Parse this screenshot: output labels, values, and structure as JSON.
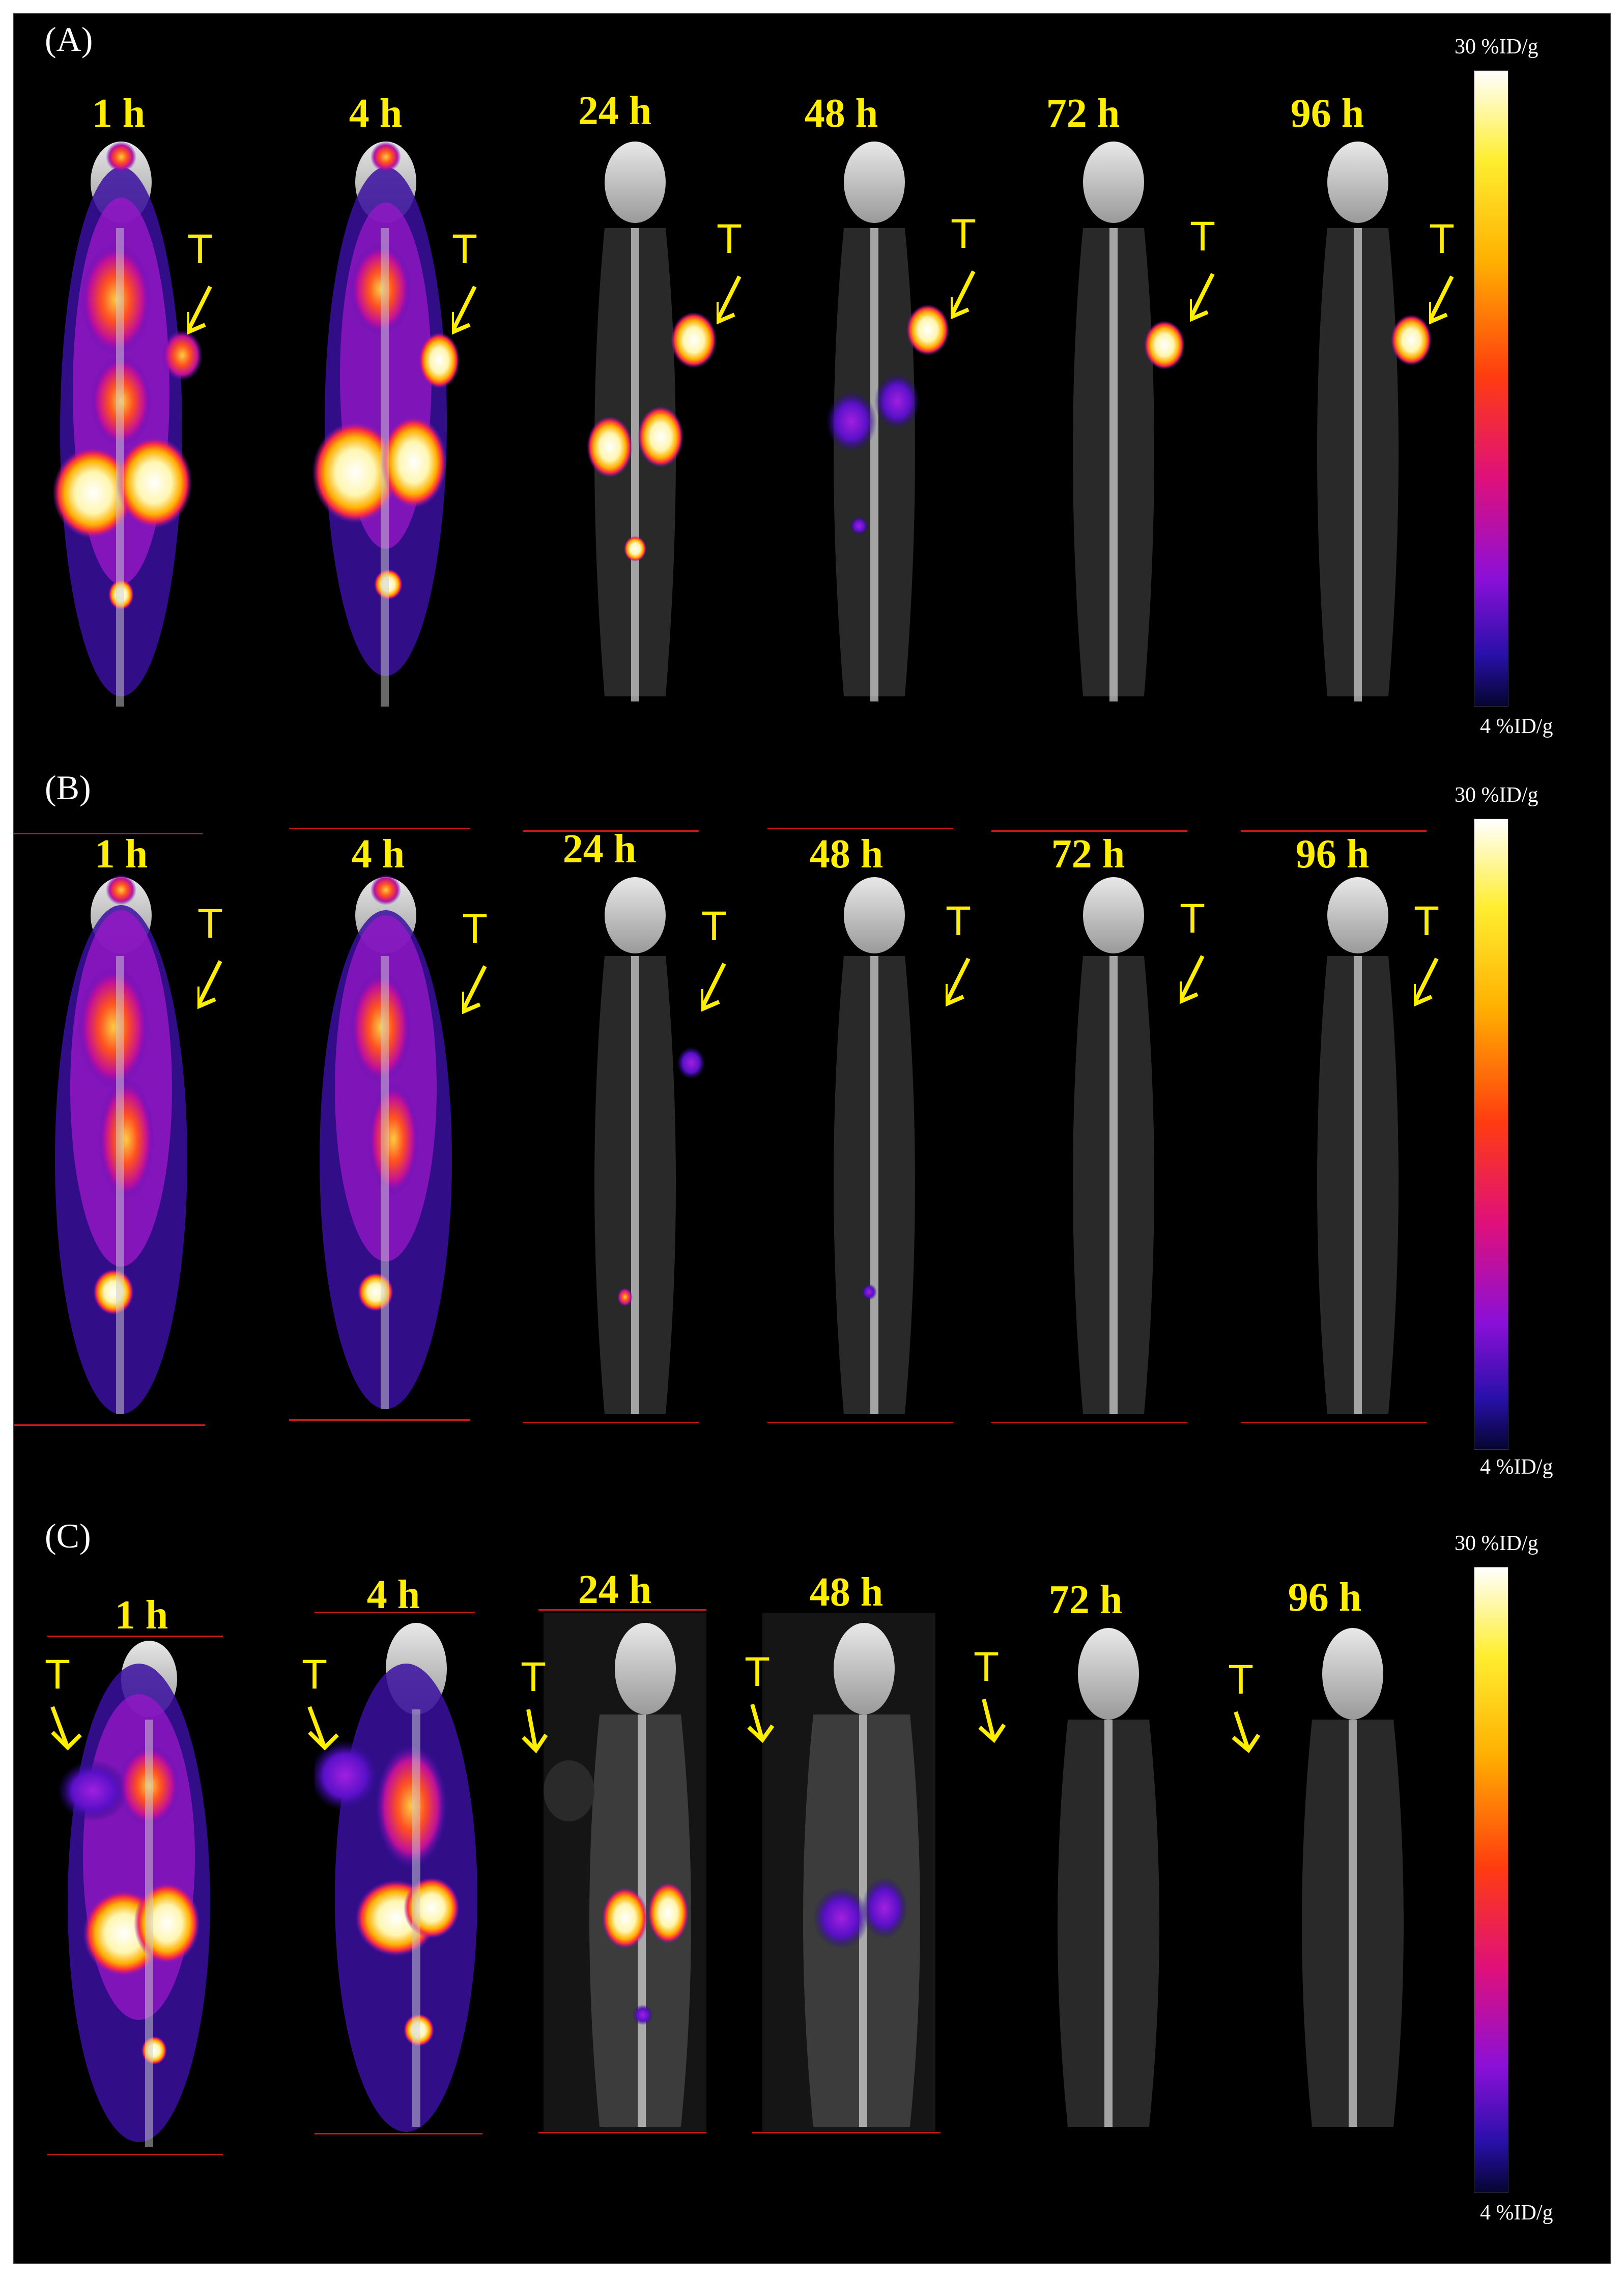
{
  "panels": [
    {
      "label": "(A)",
      "times": [
        "1 h",
        "4 h",
        "24 h",
        "48 h",
        "72 h",
        "96 h"
      ],
      "tumor_marker": "T",
      "colorbar": {
        "max_label": "30 %ID/g",
        "min_label": "4 %ID/g"
      }
    },
    {
      "label": "(B)",
      "times": [
        "1 h",
        "4 h",
        "24 h",
        "48 h",
        "72 h",
        "96 h"
      ],
      "tumor_marker": "T",
      "colorbar": {
        "max_label": "30 %ID/g",
        "min_label": "4 %ID/g"
      }
    },
    {
      "label": "(C)",
      "times": [
        "1 h",
        "4 h",
        "24 h",
        "48 h",
        "72 h",
        "96 h"
      ],
      "tumor_marker": "T",
      "colorbar": {
        "max_label": "30 %ID/g",
        "min_label": "4 %ID/g"
      }
    }
  ],
  "colors": {
    "label_yellow": "#ffee00",
    "background": "#000000",
    "guide_line": "#c81818"
  }
}
